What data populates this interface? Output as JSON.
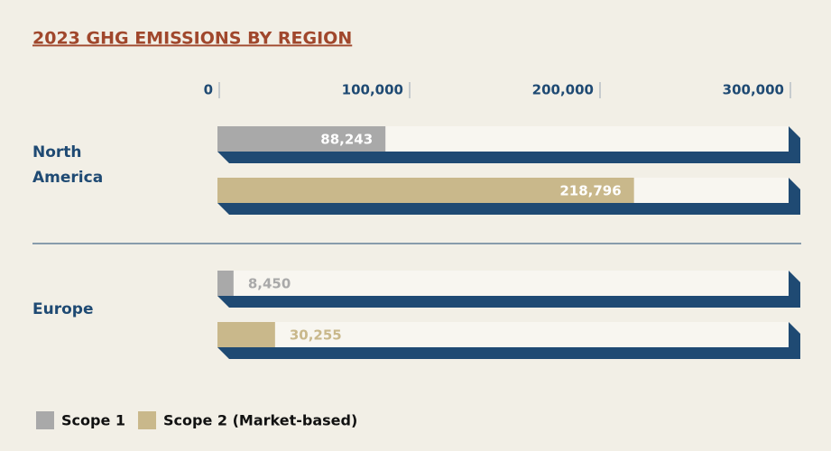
{
  "chart_data": {
    "type": "bar",
    "orientation": "horizontal",
    "title": "2023 GHG EMISSIONS BY REGION",
    "categories": [
      "North America",
      "Europe"
    ],
    "series": [
      {
        "name": "Scope 1",
        "color": "#a9a9a9",
        "values": [
          88243,
          8450
        ],
        "value_labels": [
          "88,243",
          "8,450"
        ]
      },
      {
        "name": "Scope 2 (Market-based)",
        "color": "#c9b88b",
        "values": [
          218796,
          30255
        ],
        "value_labels": [
          "218,796",
          "30,255"
        ]
      }
    ],
    "xlim": [
      0,
      300000
    ],
    "xticks": [
      0,
      {
        "value": 100000,
        "label": "100,000"
      },
      {
        "value": 200000,
        "label": "200,000"
      },
      {
        "value": 300000,
        "label": "300,000"
      }
    ],
    "legend": "bottom-left"
  }
}
